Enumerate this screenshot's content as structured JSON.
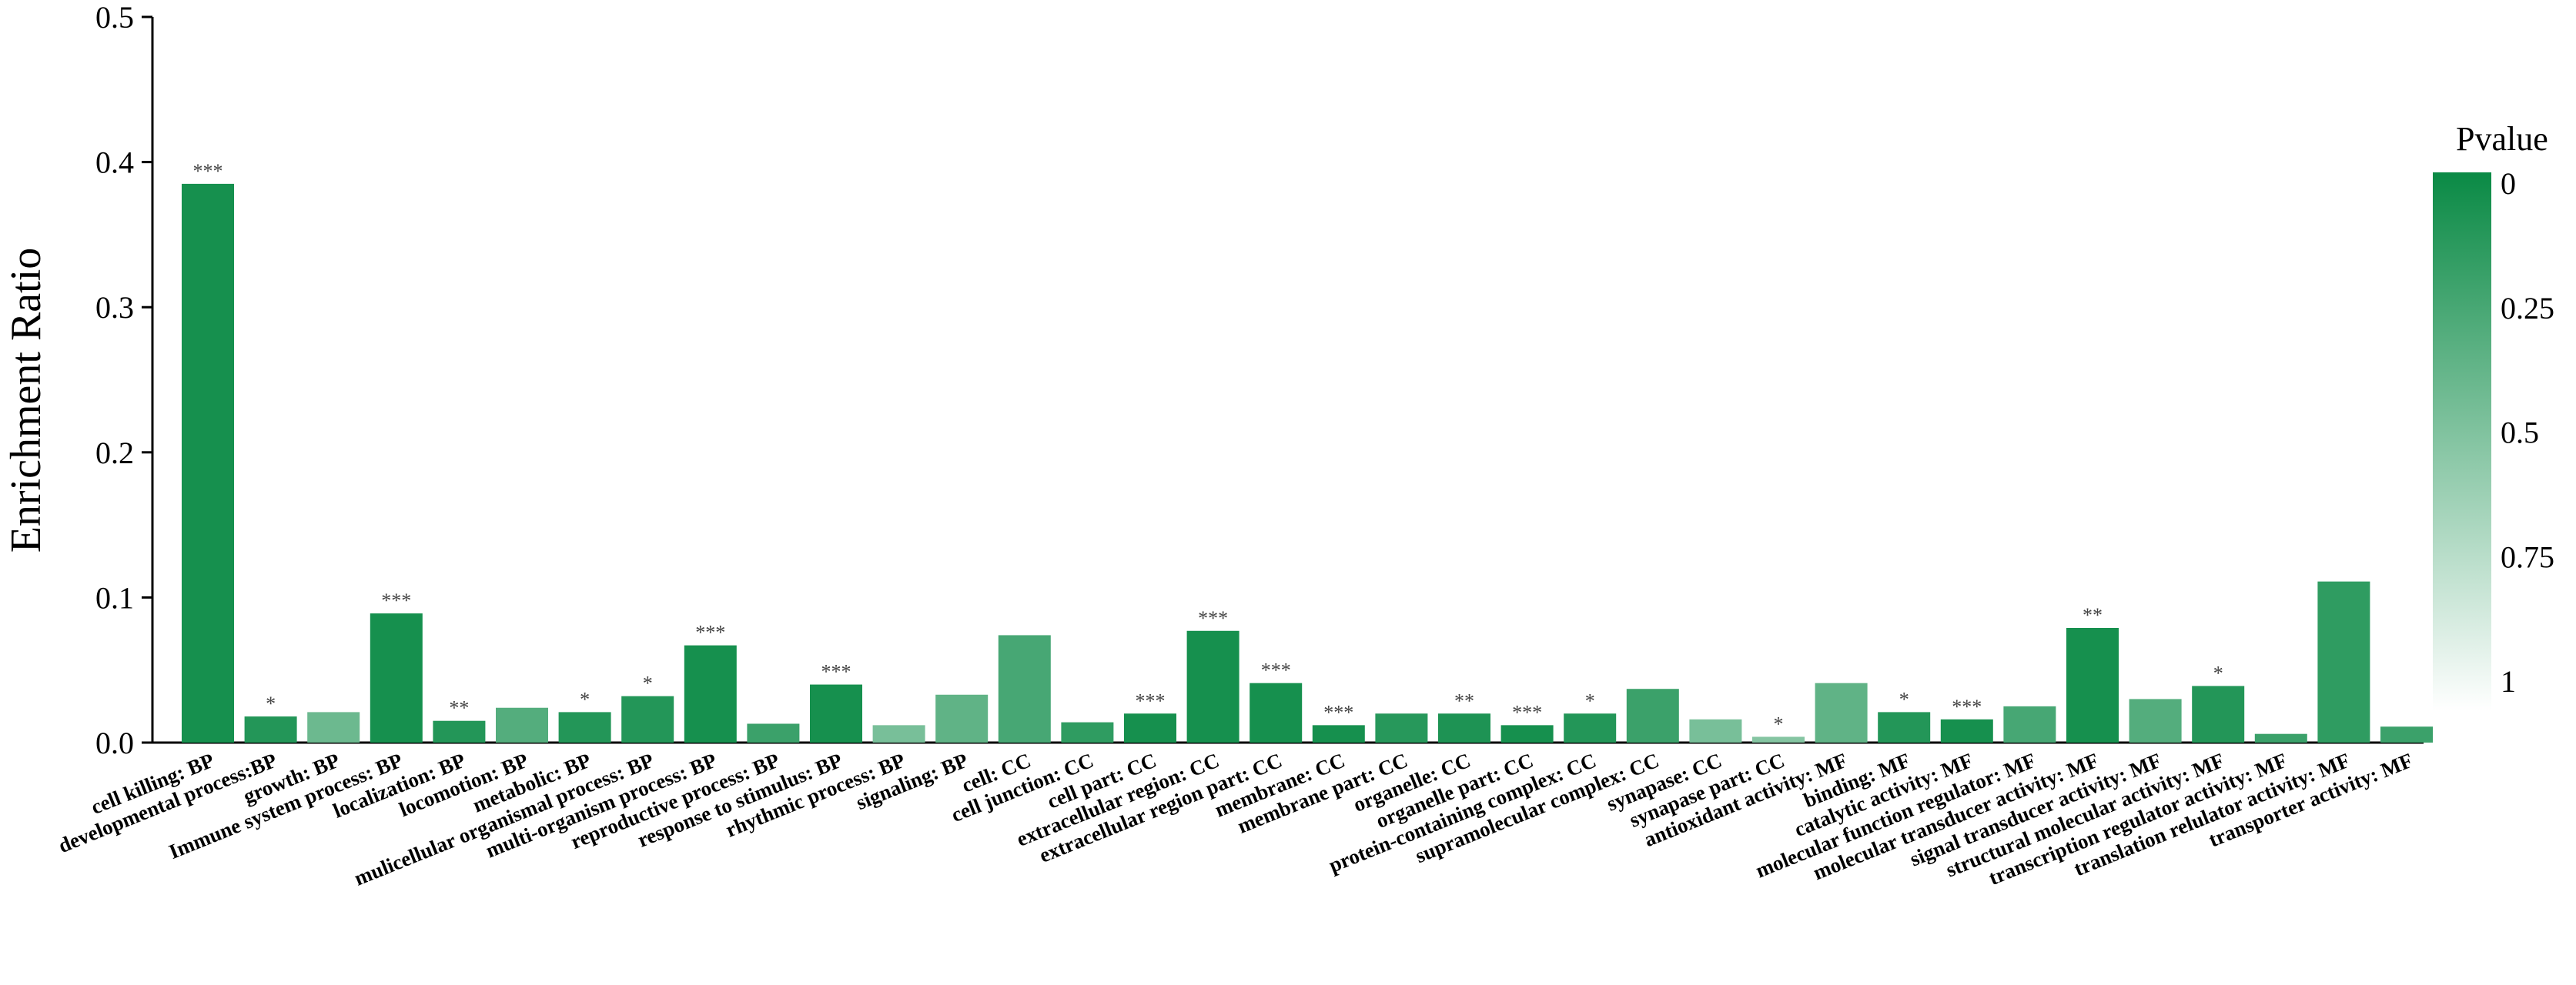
{
  "chart_data": {
    "type": "bar",
    "title": "",
    "xlabel": "",
    "ylabel": "Enrichment Ratio",
    "ylim": [
      0,
      0.5
    ],
    "yticks": [
      "0.0",
      "0.1",
      "0.2",
      "0.3",
      "0.4",
      "0.5"
    ],
    "grid": false,
    "categories": [
      "cell killing: BP",
      "developmental process:BP",
      "growth: BP",
      "Immune system process: BP",
      "localization: BP",
      "locomotion: BP",
      "metabolic: BP",
      "mulicellular organismal process: BP",
      "multi-organism process: BP",
      "reproductive process: BP",
      "response to stimulus: BP",
      "rhythmic process: BP",
      "signaling: BP",
      "cell: CC",
      "cell junction: CC",
      "cell part: CC",
      "extracellular region: CC",
      "extracellular region part: CC",
      "membrane: CC",
      "membrane part: CC",
      "organelle: CC",
      "organelle part: CC",
      "protein-containing complex: CC",
      "supramolecular complex: CC",
      "synapase: CC",
      "synapase part: CC",
      "antioxidant activity: MF",
      "binding: MF",
      "catalytic activity: MF",
      "molecular function regulator: MF",
      "molecular transducer activity: MF",
      "signal transducer activity: MF",
      "structural molecular activity: MF",
      "transcription regulator activity: MF",
      "translation relulator activity: MF",
      "transporter activity: MF"
    ],
    "values": [
      0.385,
      0.018,
      0.021,
      0.089,
      0.015,
      0.024,
      0.021,
      0.032,
      0.067,
      0.013,
      0.04,
      0.012,
      0.033,
      0.074,
      0.014,
      0.02,
      0.077,
      0.041,
      0.012,
      0.02,
      0.02,
      0.012,
      0.02,
      0.037,
      0.016,
      0.004,
      0.041,
      0.021,
      0.016,
      0.025,
      0.079,
      0.03,
      0.039,
      0.006,
      0.111,
      0.011
    ],
    "significance": [
      "***",
      "*",
      "",
      "***",
      "**",
      "",
      "*",
      "*",
      "***",
      "",
      "***",
      "",
      "",
      "",
      "",
      "***",
      "***",
      "***",
      "***",
      "",
      "**",
      "***",
      "*",
      "",
      "",
      "*",
      "",
      "*",
      "***",
      "",
      "**",
      "",
      "*",
      "",
      "",
      ""
    ],
    "pvalues": [
      0.05,
      0.1,
      0.4,
      0.05,
      0.1,
      0.3,
      0.1,
      0.1,
      0.05,
      0.2,
      0.05,
      0.45,
      0.35,
      0.25,
      0.15,
      0.05,
      0.05,
      0.05,
      0.05,
      0.12,
      0.08,
      0.05,
      0.1,
      0.2,
      0.45,
      0.5,
      0.35,
      0.1,
      0.05,
      0.25,
      0.05,
      0.3,
      0.1,
      0.2,
      0.15,
      0.2
    ],
    "legend": {
      "title": "Pvalue",
      "placement": "right",
      "ticks": [
        "0",
        "0.25",
        "0.5",
        "0.75",
        "1"
      ],
      "color_low": "#0a8a45",
      "color_high": "#ffffff"
    }
  }
}
